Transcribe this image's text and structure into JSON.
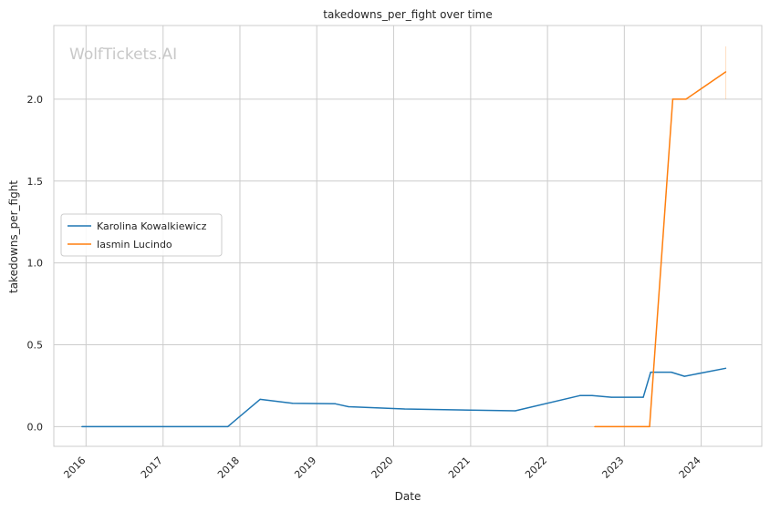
{
  "chart_data": {
    "type": "line",
    "title": "takedowns_per_fight over time",
    "xlabel": "Date",
    "ylabel": "takedowns_per_fight",
    "watermark": "WolfTickets.AI",
    "xlim": [
      "2015-08-01",
      "2024-10-15"
    ],
    "ylim": [
      -0.12,
      2.45
    ],
    "x_ticks": [
      "2016",
      "2017",
      "2018",
      "2019",
      "2020",
      "2021",
      "2022",
      "2023",
      "2024"
    ],
    "y_ticks": [
      "0.0",
      "0.5",
      "1.0",
      "1.5",
      "2.0"
    ],
    "grid": true,
    "legend_position": "center-left",
    "series": [
      {
        "name": "Karolina Kowalkiewicz",
        "color": "#1f77b4",
        "points": [
          [
            "2015-12-12",
            0.0
          ],
          [
            "2017-11-04",
            0.0
          ],
          [
            "2018-04-07",
            0.167
          ],
          [
            "2018-09-08",
            0.143
          ],
          [
            "2019-03-30",
            0.14
          ],
          [
            "2019-06-01",
            0.122
          ],
          [
            "2020-02-22",
            0.108
          ],
          [
            "2021-08-01",
            0.097
          ],
          [
            "2022-06-04",
            0.19
          ],
          [
            "2022-08-01",
            0.19
          ],
          [
            "2022-11-01",
            0.18
          ],
          [
            "2023-04-01",
            0.18
          ],
          [
            "2023-05-06",
            0.333
          ],
          [
            "2023-08-12",
            0.333
          ],
          [
            "2023-10-14",
            0.308
          ],
          [
            "2024-04-27",
            0.357
          ]
        ]
      },
      {
        "name": "Iasmin Lucindo",
        "color": "#ff7f0e",
        "points": [
          [
            "2022-08-13",
            0.0
          ],
          [
            "2023-05-01",
            0.0
          ],
          [
            "2023-08-19",
            2.0
          ],
          [
            "2023-10-21",
            2.0
          ],
          [
            "2024-04-27",
            2.167
          ]
        ]
      }
    ]
  }
}
